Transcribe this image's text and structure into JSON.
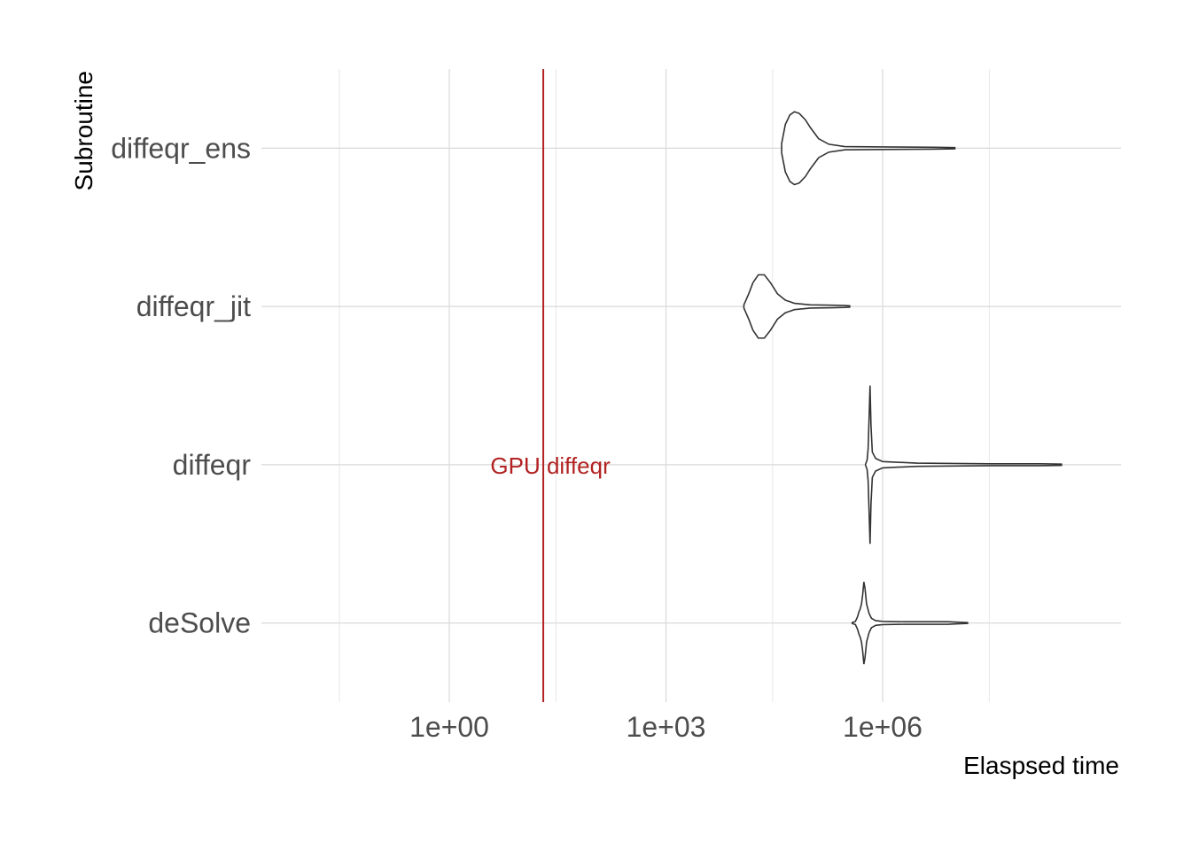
{
  "chart_data": {
    "type": "violin",
    "title": "",
    "xlabel": "Elaspsed time",
    "ylabel": "Subroutine",
    "x_scale": "log10",
    "xlim": [
      0.0025,
      2000000000
    ],
    "x_ticks": [
      1,
      1000,
      1000000
    ],
    "x_tick_labels": [
      "1e+00",
      "1e+03",
      "1e+06"
    ],
    "x_minor_ticks": [
      0.03,
      30,
      30000,
      30000000
    ],
    "grid": true,
    "colors": {
      "violin_outline": "#333333",
      "annotation": "#b22222"
    },
    "categories": [
      "deSolve",
      "diffeqr",
      "diffeqr_jit",
      "diffeqr_ens"
    ],
    "series": [
      {
        "category": "deSolve",
        "profile": [
          [
            380000,
            0.003
          ],
          [
            420000,
            0.01
          ],
          [
            450000,
            0.04
          ],
          [
            470000,
            0.07
          ],
          [
            490000,
            0.09
          ],
          [
            510000,
            0.12
          ],
          [
            530000,
            0.18
          ],
          [
            550000,
            0.26
          ],
          [
            570000,
            0.22
          ],
          [
            600000,
            0.12
          ],
          [
            650000,
            0.06
          ],
          [
            700000,
            0.03
          ],
          [
            800000,
            0.015
          ],
          [
            1000000,
            0.01
          ],
          [
            2000000,
            0.008
          ],
          [
            5000000,
            0.008
          ],
          [
            8000000,
            0.008
          ],
          [
            10000000,
            0.006
          ],
          [
            15000000,
            0.003
          ]
        ]
      },
      {
        "category": "diffeqr",
        "profile": [
          [
            580000,
            0.003
          ],
          [
            610000,
            0.03
          ],
          [
            630000,
            0.1
          ],
          [
            650000,
            0.3
          ],
          [
            670000,
            0.5
          ],
          [
            690000,
            0.25
          ],
          [
            720000,
            0.08
          ],
          [
            800000,
            0.04
          ],
          [
            1000000,
            0.02
          ],
          [
            3000000,
            0.01
          ],
          [
            30000000,
            0.006
          ],
          [
            150000000,
            0.006
          ],
          [
            300000000,
            0.004
          ]
        ]
      },
      {
        "category": "diffeqr_jit",
        "profile": [
          [
            12000,
            0.01
          ],
          [
            14000,
            0.08
          ],
          [
            16000,
            0.15
          ],
          [
            19000,
            0.2
          ],
          [
            23000,
            0.2
          ],
          [
            28000,
            0.15
          ],
          [
            35000,
            0.08
          ],
          [
            45000,
            0.04
          ],
          [
            60000,
            0.02
          ],
          [
            100000,
            0.01
          ],
          [
            200000,
            0.008
          ],
          [
            300000,
            0.006
          ],
          [
            350000,
            0.004
          ]
        ]
      },
      {
        "category": "diffeqr_ens",
        "profile": [
          [
            40000,
            0.03
          ],
          [
            45000,
            0.15
          ],
          [
            52000,
            0.21
          ],
          [
            60000,
            0.23
          ],
          [
            70000,
            0.22
          ],
          [
            85000,
            0.18
          ],
          [
            100000,
            0.13
          ],
          [
            130000,
            0.06
          ],
          [
            180000,
            0.025
          ],
          [
            300000,
            0.01
          ],
          [
            1000000,
            0.008
          ],
          [
            5000000,
            0.006
          ],
          [
            10000000,
            0.004
          ]
        ]
      }
    ],
    "reference_line": {
      "x": 20,
      "label": "GPU diffeqr",
      "color": "#b22222",
      "label_category": "diffeqr"
    }
  }
}
